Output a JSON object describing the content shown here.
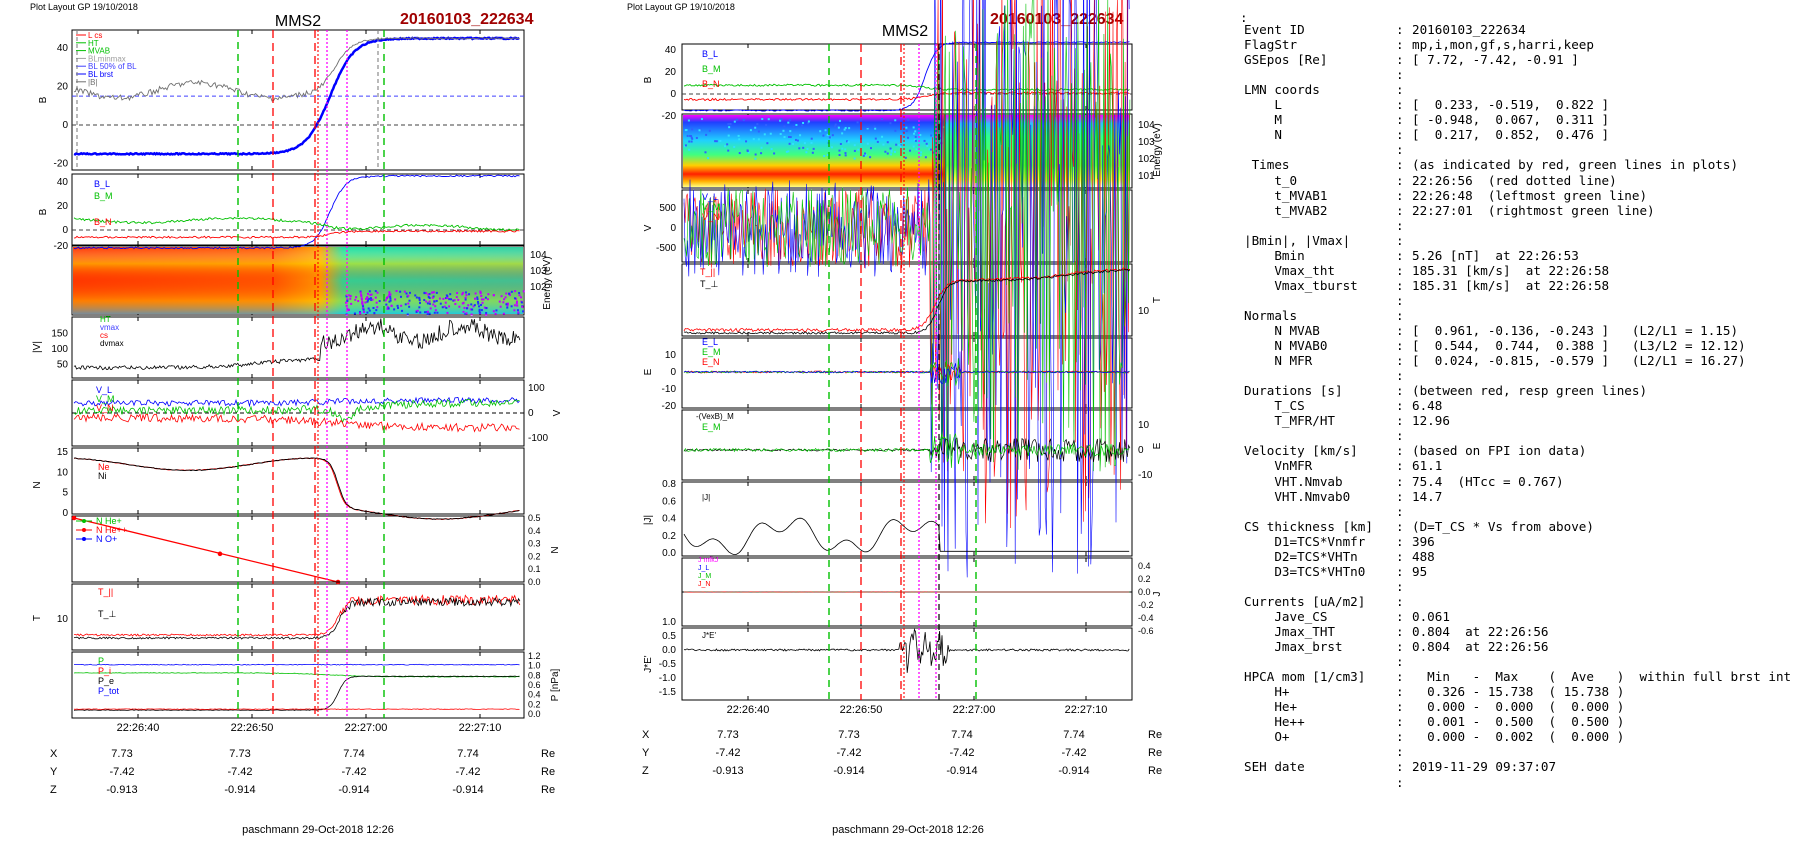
{
  "header": {
    "left_small": "Plot Layout GP 19/10/2018",
    "right_small": "Plot Layout GP 19/10/2018",
    "sc": "MMS2",
    "event": "20160103_222634"
  },
  "colors": {
    "event_red": "#a00000",
    "red": "#ff0000",
    "green": "#00c000",
    "blue": "#0000ff",
    "magenta": "#ff00ff",
    "black": "#000000",
    "gray": "#808080"
  },
  "footer": {
    "left": "paschmann 29-Oct-2018 12:26",
    "right": "paschmann 29-Oct-2018 12:26"
  },
  "time_ticks": [
    "22:26:40",
    "22:26:50",
    "22:27:00",
    "22:27:10"
  ],
  "pos_table": {
    "labels": [
      "X",
      "Y",
      "Z"
    ],
    "unit": "Re",
    "X": [
      "7.73",
      "7.73",
      "7.74",
      "7.74"
    ],
    "Y": [
      "-7.42",
      "-7.42",
      "-7.42",
      "-7.42"
    ],
    "Z": [
      "-0.913",
      "-0.914",
      "-0.914",
      "-0.914"
    ]
  },
  "chart_data": [
    {
      "type": "line",
      "panel": "left",
      "title": "MMS2",
      "panels": [
        {
          "ylabel": "B_L,|B| [nT]",
          "ylim": [
            -20,
            50
          ],
          "ticks": [
            "40",
            "20",
            "0",
            "-20"
          ],
          "legend": [
            "L cs",
            "HT",
            "MVAB",
            "BLminmax",
            "BL 50% of BL",
            "BL brst",
            "|B|"
          ]
        },
        {
          "ylabel": "B_LMN [nT]",
          "ylim": [
            -20,
            50
          ],
          "ticks": [
            "40",
            "20",
            "0",
            "-20"
          ],
          "legend": [
            "B_L",
            "B_M",
            "B_N"
          ]
        },
        {
          "ylabel": "Energy (eV)",
          "ticks": [
            "10^4",
            "10^3",
            "10^2"
          ]
        },
        {
          "ylabel": "|V_i| [km/s]",
          "ylim": [
            20,
            200
          ],
          "ticks": [
            "150",
            "100",
            "50"
          ],
          "legend": [
            "HT",
            "vmax",
            "cs",
            "dvmax"
          ]
        },
        {
          "ylabel": "V_i LMN [km/s]",
          "ticks": [
            "100",
            "0",
            "-100"
          ],
          "legend": [
            "V_L",
            "V_M",
            "V_N"
          ]
        },
        {
          "ylabel": "N [cm^-3]",
          "ylim": [
            0,
            15
          ],
          "ticks": [
            "15",
            "10",
            "5",
            "0"
          ],
          "legend": [
            "Ne",
            "Ni"
          ]
        },
        {
          "ylabel": "N_i [cm^-3]",
          "ylim": [
            0,
            0.5
          ],
          "ticks": [
            "0.5",
            "0.4",
            "0.3",
            "0.2",
            "0.1",
            "0.0"
          ],
          "legend": [
            "N He+",
            "N He++",
            "N O+"
          ]
        },
        {
          "ylabel": "T_i [eV]",
          "ticks": [
            "10^3"
          ],
          "legend": [
            "T_||",
            "T_⊥"
          ]
        },
        {
          "ylabel": "P [nPa]",
          "ylim": [
            0,
            1.2
          ],
          "ticks": [
            "1.2",
            "1.0",
            "0.8",
            "0.6",
            "0.4",
            "0.2",
            "0.0"
          ],
          "legend": [
            "P",
            "P_i",
            "P_e",
            "P_tot"
          ]
        }
      ]
    },
    {
      "type": "line",
      "panel": "right",
      "title": "MMS2",
      "panels": [
        {
          "ylabel": "B_LMN [nT]",
          "ticks": [
            "40",
            "20",
            "0",
            "-20"
          ],
          "legend": [
            "B_L",
            "B_M",
            "B_N"
          ]
        },
        {
          "ylabel": "Energy (eV)",
          "ticks": [
            "10^4",
            "10^3",
            "10^2",
            "10^1"
          ]
        },
        {
          "ylabel": "V_e LMN [km/s]",
          "ticks": [
            "500",
            "0",
            "-500"
          ],
          "legend": [
            "V_L",
            "V_M",
            "V_N"
          ]
        },
        {
          "ylabel": "T_e [eV]",
          "ticks": [
            "10^2"
          ],
          "legend": [
            "T_||",
            "T_⊥"
          ]
        },
        {
          "ylabel": "E_LMN [mV m^-1]",
          "ticks": [
            "10",
            "0",
            "-10",
            "-20"
          ],
          "legend": [
            "E_L",
            "E_M",
            "E_N"
          ]
        },
        {
          "ylabel": "E_M [mV m^-2]",
          "ticks": [
            "10",
            "0",
            "-10"
          ],
          "legend": [
            "-(VexB)_M",
            "E_M"
          ]
        },
        {
          "ylabel": "|J| [µA m^-2]",
          "ticks": [
            "0.8",
            "0.6",
            "0.4",
            "0.2",
            "0.0"
          ],
          "legend": [
            "|J|"
          ]
        },
        {
          "ylabel": "J [µA m^-2]",
          "ticks": [
            "0.4",
            "0.2",
            "0.0",
            "-0.2",
            "-0.4",
            "-0.6"
          ],
          "legend": [
            "J mfkJ",
            "J_L",
            "J_M",
            "J_N"
          ]
        },
        {
          "ylabel": "J*E' [nW m^-3]",
          "ticks": [
            "1.0",
            "0.5",
            "0.0",
            "-0.5",
            "-1.0",
            "-1.5"
          ],
          "legend": [
            "J*E'"
          ]
        }
      ]
    }
  ],
  "info": [
    {
      "k": "Event ID",
      "v": "20160103_222634"
    },
    {
      "k": "FlagStr",
      "v": "mp,i,mon,gf,s,harri,keep"
    },
    {
      "k": "GSEpos [Re]",
      "v": "[ 7.72, -7.42, -0.91 ]"
    },
    {
      "k": "",
      "v": ""
    },
    {
      "k": "LMN coords",
      "v": ""
    },
    {
      "k": "    L",
      "v": "[  0.233, -0.519,  0.822 ]"
    },
    {
      "k": "    M",
      "v": "[ -0.948,  0.067,  0.311 ]"
    },
    {
      "k": "    N",
      "v": "[  0.217,  0.852,  0.476 ]"
    },
    {
      "k": "",
      "v": ""
    },
    {
      "k": " Times",
      "v": "(as indicated by red, green lines in plots)"
    },
    {
      "k": "    t_0",
      "v": "22:26:56  (red dotted line)"
    },
    {
      "k": "    t_MVAB1",
      "v": "22:26:48  (leftmost green line)"
    },
    {
      "k": "    t_MVAB2",
      "v": "22:27:01  (rightmost green line)"
    },
    {
      "k": "",
      "v": ""
    },
    {
      "k": "|Bmin|, |Vmax|",
      "v": ""
    },
    {
      "k": "    Bmin",
      "v": "5.26 [nT]  at 22:26:53"
    },
    {
      "k": "    Vmax_tht",
      "v": "185.31 [km/s]  at 22:26:58"
    },
    {
      "k": "    Vmax_tburst",
      "v": "185.31 [km/s]  at 22:26:58"
    },
    {
      "k": "",
      "v": ""
    },
    {
      "k": "Normals",
      "v": ""
    },
    {
      "k": "    N MVAB",
      "v": "[  0.961, -0.136, -0.243 ]   (L2/L1 = 1.15)"
    },
    {
      "k": "    N MVAB0",
      "v": "[  0.544,  0.744,  0.388 ]   (L3/L2 = 12.12)"
    },
    {
      "k": "    N MFR",
      "v": "[  0.024, -0.815, -0.579 ]   (L2/L1 = 16.27)"
    },
    {
      "k": "",
      "v": ""
    },
    {
      "k": "Durations [s]",
      "v": "(between red, resp green lines)"
    },
    {
      "k": "    T_CS",
      "v": "6.48"
    },
    {
      "k": "    T_MFR/HT",
      "v": "12.96"
    },
    {
      "k": "",
      "v": ""
    },
    {
      "k": "Velocity [km/s]",
      "v": "(based on FPI ion data)"
    },
    {
      "k": "    VnMFR",
      "v": "61.1"
    },
    {
      "k": "    VHT.Nmvab",
      "v": "75.4  (HTcc = 0.767)"
    },
    {
      "k": "    VHT.Nmvab0",
      "v": "14.7"
    },
    {
      "k": "",
      "v": ""
    },
    {
      "k": "CS thickness [km]",
      "v": "(D=T_CS * Vs from above)"
    },
    {
      "k": "    D1=TCS*Vnmfr",
      "v": "396"
    },
    {
      "k": "    D2=TCS*VHTn",
      "v": "488"
    },
    {
      "k": "    D3=TCS*VHTn0",
      "v": "95"
    },
    {
      "k": "",
      "v": ""
    },
    {
      "k": "Currents [uA/m2]",
      "v": ""
    },
    {
      "k": "    Jave_CS",
      "v": "0.061"
    },
    {
      "k": "    Jmax_THT",
      "v": "0.804  at 22:26:56"
    },
    {
      "k": "    Jmax_brst",
      "v": "0.804  at 22:26:56"
    },
    {
      "k": "",
      "v": ""
    },
    {
      "k": "HPCA mom [1/cm3]",
      "v": "  Min   -  Max    (  Ave   )  within full brst int"
    },
    {
      "k": "    H+",
      "v": "  0.326 - 15.738  ( 15.738 )"
    },
    {
      "k": "    He+",
      "v": "  0.000 -  0.000  (  0.000 )"
    },
    {
      "k": "    He++",
      "v": "  0.001 -  0.500  (  0.500 )"
    },
    {
      "k": "    O+",
      "v": "  0.000 -  0.002  (  0.000 )"
    },
    {
      "k": "",
      "v": ""
    },
    {
      "k": "SEH date",
      "v": "2019-11-29 09:37:07"
    },
    {
      "k": "",
      "v": ""
    }
  ]
}
